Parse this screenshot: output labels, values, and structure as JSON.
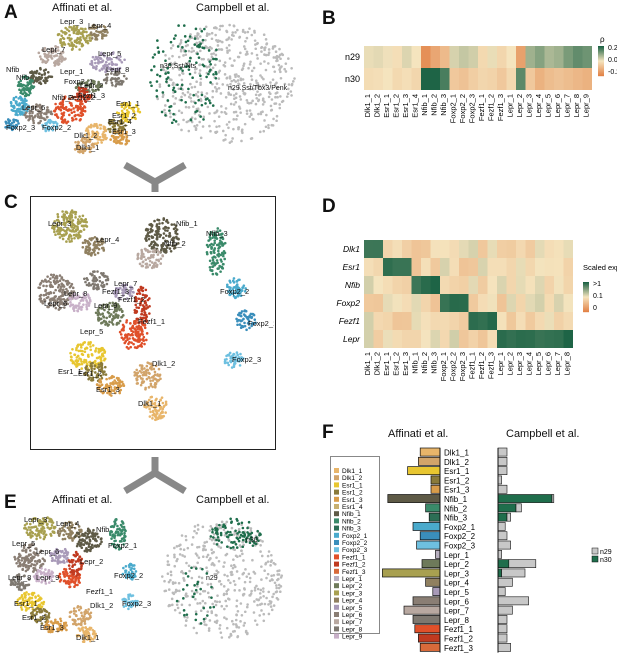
{
  "panels": {
    "A": {
      "letter": "A",
      "left_title": "Affinati et al.",
      "right_title": "Campbell et al.",
      "right_labels": [
        "n30.Sst/Nts",
        "n29.Sst/Tbx3/Penk"
      ]
    },
    "B": {
      "letter": "B"
    },
    "C": {
      "letter": "C"
    },
    "D": {
      "letter": "D"
    },
    "E": {
      "letter": "E",
      "left_title": "Affinati et al.",
      "right_title": "Campbell et al.",
      "right_labels": [
        "n30",
        "n29"
      ]
    },
    "F": {
      "letter": "F",
      "left_title": "Affinati et al.",
      "right_title": "Campbell et al."
    }
  },
  "clusters": [
    "Dlk1_1",
    "Dlk1_2",
    "Esr1_1",
    "Esr1_2",
    "Esr1_3",
    "Esr1_4",
    "Nfib_1",
    "Nfib_2",
    "Nfib_3",
    "Foxp2_1",
    "Foxp2_2",
    "Foxp2_3",
    "Fezf1_1",
    "Fezf1_2",
    "Fezf1_3",
    "Lepr_1",
    "Lepr_2",
    "Lepr_3",
    "Lepr_4",
    "Lepr_5",
    "Lepr_6",
    "Lepr_7",
    "Lepr_8",
    "Lepr_9"
  ],
  "cluster_colors": [
    "#E8B56A",
    "#D2A46A",
    "#E8C630",
    "#8A7A3A",
    "#D89C4A",
    "#C8B070",
    "#5E5A46",
    "#3A8A6A",
    "#2C6E55",
    "#4AAACC",
    "#3A8EBB",
    "#6EC0E0",
    "#E0502A",
    "#C03A20",
    "#D86A3A",
    "#B8B0C0",
    "#6E7A5A",
    "#A8A050",
    "#908060",
    "#A89AB8",
    "#8A7E74",
    "#B8A8A0",
    "#7E7870",
    "#C8B0C8"
  ],
  "umap_labels_A": [
    "Lepr_3",
    "Lepr_4",
    "Lepr_7",
    "Lepr_5",
    "Lepr_8",
    "Nfib",
    "Lepr_1",
    "Nfib",
    "Foxp2_1",
    "Lepr_2",
    "Nfib_3",
    "Fezf1_2",
    "Fezf1_3",
    "Lepr_6",
    "Foxp2_3",
    "Foxp2_2",
    "Esr1_1",
    "Esr1_4",
    "Esr1_2",
    "Esr1_3",
    "Dlk1_2",
    "Dlk1_1"
  ],
  "umap_labels_C": [
    "Lepr_3",
    "Lepr_4",
    "Nfib_3",
    "Nfib_2",
    "Nfib_1",
    "Lepr_7",
    "Lepr_8",
    "Lepr_6",
    "Fezf1_3",
    "Lepr_9",
    "Lepr_5",
    "Fezf1_2",
    "Fezf1_1",
    "Esr1_1",
    "Esr1_2",
    "Esr1_3",
    "Dlk1_2",
    "Dlk1_1",
    "Foxp2_2",
    "Foxp2_1",
    "Foxp2_3"
  ],
  "umap_labels_E": [
    "Lepr_3",
    "Lepr_4",
    "Lepr_5",
    "Lepr_6",
    "Lepr_8",
    "Lepr_9",
    "Nfib",
    "Foxp2_1",
    "Lepr_2",
    "Foxp2_2",
    "Foxp2_3",
    "Esr1_1",
    "Esr1_2",
    "Esr1_3",
    "Dlk1_2",
    "Dlk1_1",
    "Fezf1_1"
  ],
  "heatmap_B": {
    "rows": [
      "n29",
      "n30"
    ],
    "cols": [
      "Dlk1_1",
      "Dlk1_2",
      "Esr1_1",
      "Esr1_2",
      "Esr1_3",
      "Esr1_4",
      "Nfib_1",
      "Nfib_2",
      "Nfib_3",
      "Foxp2_1",
      "Foxp2_2",
      "Foxp2_3",
      "Fezf1_1",
      "Fezf1_2",
      "Fezf1_3",
      "Lepr_1",
      "Lepr_2",
      "Lepr_3",
      "Lepr_4",
      "Lepr_5",
      "Lepr_6",
      "Lepr_7",
      "Lepr_8",
      "Lepr_9"
    ],
    "values": [
      [
        0.02,
        0.03,
        0.01,
        -0.02,
        0.04,
        0.0,
        -0.3,
        -0.22,
        -0.15,
        0.05,
        0.08,
        0.06,
        -0.04,
        0.02,
        -0.05,
        0.0,
        -0.24,
        0.14,
        0.18,
        0.12,
        0.14,
        0.2,
        0.24,
        0.22
      ],
      [
        -0.03,
        -0.02,
        0.0,
        -0.04,
        -0.02,
        -0.05,
        0.36,
        0.4,
        0.28,
        -0.1,
        -0.12,
        -0.08,
        -0.05,
        -0.06,
        -0.1,
        -0.04,
        0.25,
        -0.1,
        -0.18,
        -0.14,
        -0.12,
        -0.14,
        -0.16,
        -0.18
      ]
    ],
    "legend_title": "ρ",
    "legend_ticks": [
      "0.25",
      "0.00",
      "-0.25"
    ]
  },
  "heatmap_D": {
    "rows": [
      "Dlk1",
      "Esr1",
      "Nfib",
      "Foxp2",
      "Fezf1",
      "Lepr"
    ],
    "cols": [
      "Dlk1_1",
      "Dlk1_2",
      "Esr1_1",
      "Esr1_2",
      "Esr1_3",
      "Nfib_1",
      "Nfib_2",
      "Nfib_3",
      "Foxp2_1",
      "Foxp2_2",
      "Foxp2_3",
      "Fezf1_1",
      "Fezf1_2",
      "Fezf1_3",
      "Lepr_1",
      "Lepr_2",
      "Lepr_3",
      "Lepr_4",
      "Lepr_5",
      "Lepr_6",
      "Lepr_7",
      "Lepr_8"
    ],
    "legend_title": "Scaled expr.",
    "legend_ticks": [
      ">1",
      "0.1",
      "0"
    ]
  },
  "chart_data": {
    "type": "bar",
    "categories": [
      "Dlk1_1",
      "Dlk1_2",
      "Esr1_1",
      "Esr1_2",
      "Esr1_3",
      "Nfib_1",
      "Nfib_2",
      "Nfib_3",
      "Foxp2_1",
      "Foxp2_2",
      "Foxp2_3",
      "Lepr_1",
      "Lepr_2",
      "Lepr_3",
      "Lepr_4",
      "Lepr_5",
      "Lepr_6",
      "Lepr_7",
      "Lepr_8",
      "Fezf1_1",
      "Fezf1_2",
      "Fezf1_3"
    ],
    "affinati_values": [
      22,
      24,
      36,
      10,
      10,
      58,
      16,
      12,
      30,
      22,
      26,
      5,
      20,
      64,
      16,
      8,
      30,
      40,
      30,
      28,
      24,
      22
    ],
    "campbell_series": [
      {
        "name": "n29",
        "values": [
          10,
          10,
          10,
          4,
          10,
          2,
          6,
          4,
          8,
          10,
          14,
          4,
          30,
          26,
          16,
          8,
          34,
          16,
          10,
          10,
          10,
          14
        ]
      },
      {
        "name": "n30",
        "values": [
          0,
          0,
          0,
          0,
          0,
          60,
          20,
          10,
          0,
          0,
          0,
          0,
          12,
          4,
          0,
          0,
          0,
          0,
          0,
          0,
          0,
          0
        ]
      }
    ]
  },
  "f_legend": [
    "n29",
    "n30"
  ],
  "f_left_legend": [
    "Dlk1_1",
    "Dlk1_2",
    "Esr1_1",
    "Esr1_2",
    "Esr1_3",
    "Esr1_4",
    "Nfib_1",
    "Nfib_2",
    "Nfib_3",
    "Foxp2_1",
    "Foxp2_2",
    "Foxp2_3",
    "Fezf1_1",
    "Fezf1_2",
    "Fezf1_3",
    "Lepr_1",
    "Lepr_2",
    "Lepr_3",
    "Lepr_4",
    "Lepr_5",
    "Lepr_6",
    "Lepr_7",
    "Lepr_8",
    "Lepr_9"
  ]
}
